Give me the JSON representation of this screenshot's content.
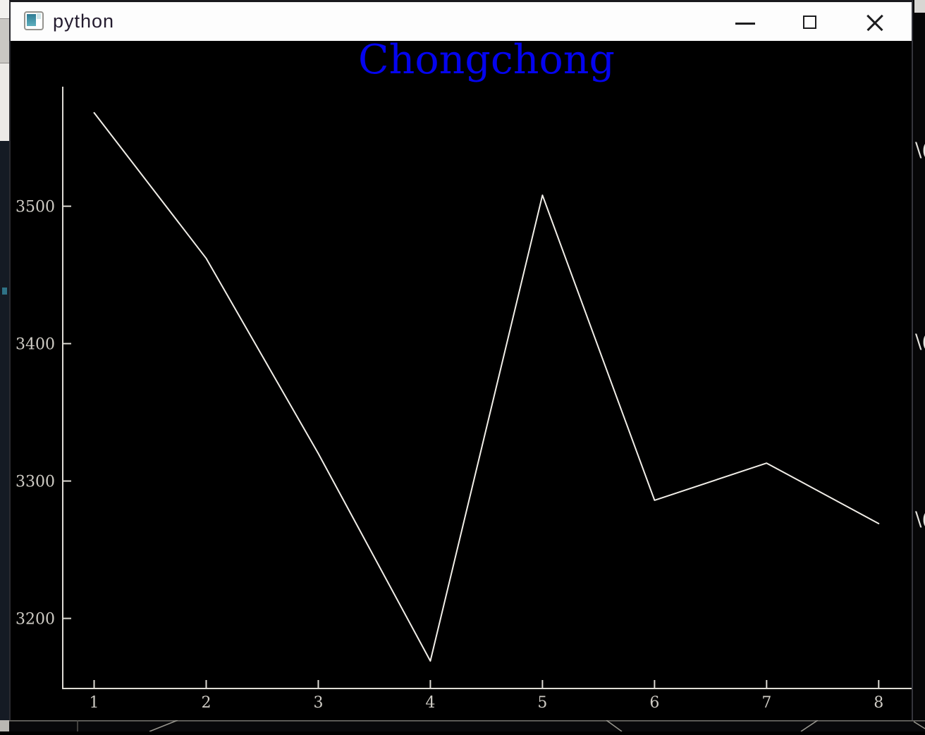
{
  "window": {
    "title": "python",
    "app_icon": "tk-app-icon",
    "controls": [
      {
        "name": "minimize",
        "icon": "minimize-icon"
      },
      {
        "name": "maximize",
        "icon": "maximize-icon"
      },
      {
        "name": "close",
        "icon": "close-icon"
      }
    ]
  },
  "chart_data": {
    "type": "line",
    "title": "Chongchong",
    "title_color": "#0404ee",
    "x": [
      1,
      2,
      3,
      4,
      5,
      6,
      7,
      8
    ],
    "values": [
      3568,
      3462,
      3320,
      3169,
      3508,
      3286,
      3313,
      3269
    ],
    "xticks": [
      "1",
      "2",
      "3",
      "4",
      "5",
      "6",
      "7",
      "8"
    ],
    "yticks": [
      "3200",
      "3300",
      "3400",
      "3500"
    ],
    "xlim": [
      0.72,
      8.3
    ],
    "ylim": [
      3149,
      3587
    ],
    "xlabel": "",
    "ylabel": "",
    "grid": false,
    "legend": null,
    "line_color": "#f1eee8",
    "axis_color": "#dedbd4",
    "tick_label_color": "#cfccc5",
    "background": "#000000"
  },
  "background_artifacts": {
    "right_edge_glyphs": [
      "\\(",
      "\\(",
      "\\("
    ],
    "accent_dot_color": "#2f7286"
  }
}
